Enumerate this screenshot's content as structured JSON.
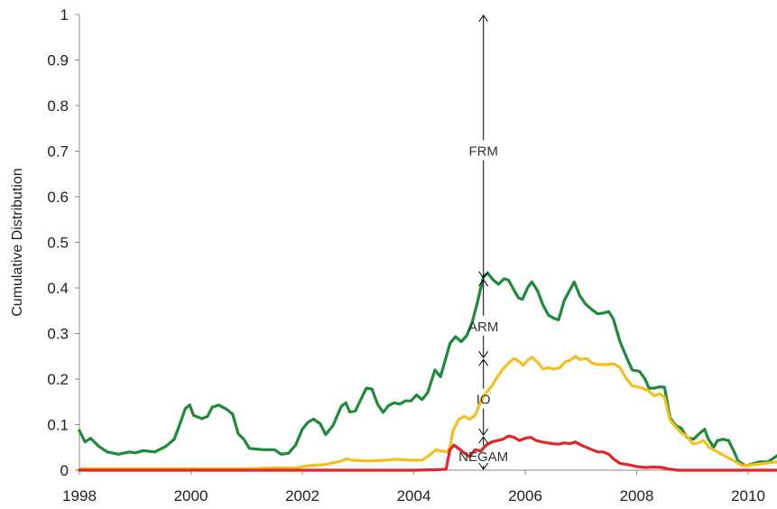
{
  "chart_data": {
    "type": "line",
    "ylabel": "Cumulative Distribution",
    "xlim": [
      1998,
      2010
    ],
    "ylim": [
      0,
      1
    ],
    "xticks": [
      1998,
      2000,
      2002,
      2004,
      2006,
      2008,
      2010
    ],
    "yticks": [
      0,
      0.1,
      0.2,
      0.3,
      0.4,
      0.5,
      0.6,
      0.7,
      0.8,
      0.9,
      1
    ],
    "ytick_labels": [
      "0",
      "0.1",
      "0.2",
      "0.3",
      "0.4",
      "0.5",
      "0.6",
      "0.7",
      "0.8",
      "0.9",
      "1"
    ],
    "grid": false,
    "series": [
      {
        "color": "#1e8a3c",
        "points": [
          [
            1998.0,
            0.087
          ],
          [
            1998.1,
            0.062
          ],
          [
            1998.2,
            0.07
          ],
          [
            1998.35,
            0.052
          ],
          [
            1998.5,
            0.04
          ],
          [
            1998.7,
            0.035
          ],
          [
            1998.9,
            0.04
          ],
          [
            1999.0,
            0.038
          ],
          [
            1999.15,
            0.043
          ],
          [
            1999.35,
            0.04
          ],
          [
            1999.55,
            0.052
          ],
          [
            1999.7,
            0.068
          ],
          [
            1999.8,
            0.1
          ],
          [
            1999.9,
            0.135
          ],
          [
            1999.98,
            0.143
          ],
          [
            2000.05,
            0.12
          ],
          [
            2000.2,
            0.113
          ],
          [
            2000.3,
            0.118
          ],
          [
            2000.38,
            0.138
          ],
          [
            2000.5,
            0.143
          ],
          [
            2000.65,
            0.133
          ],
          [
            2000.75,
            0.123
          ],
          [
            2000.85,
            0.08
          ],
          [
            2000.95,
            0.068
          ],
          [
            2001.05,
            0.048
          ],
          [
            2001.3,
            0.045
          ],
          [
            2001.5,
            0.045
          ],
          [
            2001.62,
            0.035
          ],
          [
            2001.75,
            0.037
          ],
          [
            2001.88,
            0.055
          ],
          [
            2002.0,
            0.09
          ],
          [
            2002.1,
            0.105
          ],
          [
            2002.2,
            0.112
          ],
          [
            2002.32,
            0.102
          ],
          [
            2002.42,
            0.078
          ],
          [
            2002.55,
            0.098
          ],
          [
            2002.7,
            0.14
          ],
          [
            2002.78,
            0.148
          ],
          [
            2002.85,
            0.128
          ],
          [
            2002.95,
            0.13
          ],
          [
            2003.05,
            0.155
          ],
          [
            2003.15,
            0.18
          ],
          [
            2003.25,
            0.178
          ],
          [
            2003.35,
            0.145
          ],
          [
            2003.45,
            0.127
          ],
          [
            2003.55,
            0.142
          ],
          [
            2003.65,
            0.148
          ],
          [
            2003.75,
            0.145
          ],
          [
            2003.85,
            0.152
          ],
          [
            2003.95,
            0.152
          ],
          [
            2004.05,
            0.165
          ],
          [
            2004.15,
            0.155
          ],
          [
            2004.25,
            0.17
          ],
          [
            2004.38,
            0.22
          ],
          [
            2004.48,
            0.205
          ],
          [
            2004.55,
            0.235
          ],
          [
            2004.65,
            0.278
          ],
          [
            2004.75,
            0.293
          ],
          [
            2004.85,
            0.282
          ],
          [
            2004.95,
            0.295
          ],
          [
            2005.05,
            0.325
          ],
          [
            2005.15,
            0.372
          ],
          [
            2005.25,
            0.425
          ],
          [
            2005.33,
            0.432
          ],
          [
            2005.42,
            0.418
          ],
          [
            2005.52,
            0.408
          ],
          [
            2005.62,
            0.42
          ],
          [
            2005.7,
            0.417
          ],
          [
            2005.8,
            0.395
          ],
          [
            2005.88,
            0.378
          ],
          [
            2005.95,
            0.375
          ],
          [
            2006.05,
            0.402
          ],
          [
            2006.12,
            0.413
          ],
          [
            2006.22,
            0.394
          ],
          [
            2006.32,
            0.362
          ],
          [
            2006.42,
            0.34
          ],
          [
            2006.52,
            0.333
          ],
          [
            2006.6,
            0.33
          ],
          [
            2006.7,
            0.372
          ],
          [
            2006.8,
            0.395
          ],
          [
            2006.88,
            0.413
          ],
          [
            2006.98,
            0.383
          ],
          [
            2007.08,
            0.365
          ],
          [
            2007.2,
            0.352
          ],
          [
            2007.3,
            0.343
          ],
          [
            2007.4,
            0.345
          ],
          [
            2007.5,
            0.348
          ],
          [
            2007.58,
            0.332
          ],
          [
            2007.7,
            0.282
          ],
          [
            2007.82,
            0.247
          ],
          [
            2007.92,
            0.22
          ],
          [
            2008.05,
            0.217
          ],
          [
            2008.15,
            0.2
          ],
          [
            2008.22,
            0.18
          ],
          [
            2008.32,
            0.18
          ],
          [
            2008.42,
            0.183
          ],
          [
            2008.5,
            0.182
          ],
          [
            2008.6,
            0.115
          ],
          [
            2008.7,
            0.098
          ],
          [
            2008.8,
            0.092
          ],
          [
            2008.9,
            0.072
          ],
          [
            2009.02,
            0.068
          ],
          [
            2009.12,
            0.08
          ],
          [
            2009.22,
            0.09
          ],
          [
            2009.28,
            0.07
          ],
          [
            2009.38,
            0.05
          ],
          [
            2009.45,
            0.065
          ],
          [
            2009.55,
            0.068
          ],
          [
            2009.65,
            0.065
          ],
          [
            2009.75,
            0.04
          ],
          [
            2009.82,
            0.02
          ],
          [
            2009.95,
            0.01
          ],
          [
            2010.05,
            0.013
          ],
          [
            2010.2,
            0.018
          ],
          [
            2010.35,
            0.018
          ],
          [
            2010.5,
            0.03
          ],
          [
            2010.6,
            0.04
          ],
          [
            2010.7,
            0.047
          ],
          [
            2010.8,
            0.044
          ],
          [
            2010.85,
            0.04
          ],
          [
            2010.92,
            0.047
          ]
        ]
      },
      {
        "color": "#f5bf1d",
        "points": [
          [
            1998.0,
            0.003
          ],
          [
            1999.0,
            0.003
          ],
          [
            2000.0,
            0.003
          ],
          [
            2001.0,
            0.003
          ],
          [
            2001.5,
            0.005
          ],
          [
            2001.9,
            0.005
          ],
          [
            2002.1,
            0.01
          ],
          [
            2002.4,
            0.012
          ],
          [
            2002.7,
            0.02
          ],
          [
            2002.8,
            0.025
          ],
          [
            2002.9,
            0.022
          ],
          [
            2003.2,
            0.02
          ],
          [
            2003.5,
            0.022
          ],
          [
            2003.7,
            0.024
          ],
          [
            2003.9,
            0.022
          ],
          [
            2004.15,
            0.022
          ],
          [
            2004.25,
            0.03
          ],
          [
            2004.4,
            0.045
          ],
          [
            2004.5,
            0.042
          ],
          [
            2004.6,
            0.04
          ],
          [
            2004.65,
            0.05
          ],
          [
            2004.7,
            0.085
          ],
          [
            2004.8,
            0.11
          ],
          [
            2004.9,
            0.118
          ],
          [
            2005.0,
            0.112
          ],
          [
            2005.1,
            0.12
          ],
          [
            2005.2,
            0.15
          ],
          [
            2005.3,
            0.17
          ],
          [
            2005.4,
            0.185
          ],
          [
            2005.5,
            0.205
          ],
          [
            2005.6,
            0.222
          ],
          [
            2005.7,
            0.235
          ],
          [
            2005.8,
            0.245
          ],
          [
            2005.9,
            0.238
          ],
          [
            2005.96,
            0.23
          ],
          [
            2006.05,
            0.242
          ],
          [
            2006.12,
            0.248
          ],
          [
            2006.22,
            0.237
          ],
          [
            2006.32,
            0.222
          ],
          [
            2006.42,
            0.225
          ],
          [
            2006.52,
            0.222
          ],
          [
            2006.62,
            0.225
          ],
          [
            2006.72,
            0.238
          ],
          [
            2006.82,
            0.242
          ],
          [
            2006.9,
            0.25
          ],
          [
            2006.98,
            0.243
          ],
          [
            2007.1,
            0.245
          ],
          [
            2007.2,
            0.235
          ],
          [
            2007.3,
            0.232
          ],
          [
            2007.45,
            0.232
          ],
          [
            2007.6,
            0.233
          ],
          [
            2007.7,
            0.225
          ],
          [
            2007.82,
            0.2
          ],
          [
            2007.92,
            0.185
          ],
          [
            2008.05,
            0.182
          ],
          [
            2008.2,
            0.175
          ],
          [
            2008.32,
            0.163
          ],
          [
            2008.42,
            0.168
          ],
          [
            2008.5,
            0.16
          ],
          [
            2008.6,
            0.11
          ],
          [
            2008.7,
            0.095
          ],
          [
            2008.8,
            0.082
          ],
          [
            2008.9,
            0.075
          ],
          [
            2009.0,
            0.058
          ],
          [
            2009.1,
            0.06
          ],
          [
            2009.2,
            0.065
          ],
          [
            2009.3,
            0.05
          ],
          [
            2009.45,
            0.04
          ],
          [
            2009.6,
            0.03
          ],
          [
            2009.75,
            0.02
          ],
          [
            2009.9,
            0.01
          ],
          [
            2010.1,
            0.012
          ],
          [
            2010.3,
            0.015
          ],
          [
            2010.5,
            0.018
          ],
          [
            2010.7,
            0.018
          ],
          [
            2010.92,
            0.018
          ]
        ]
      },
      {
        "color": "#e0252b",
        "points": [
          [
            1998.0,
            0.0
          ],
          [
            2000.0,
            0.0
          ],
          [
            2001.0,
            0.0
          ],
          [
            2002.0,
            0.0
          ],
          [
            2003.0,
            0.0
          ],
          [
            2004.0,
            0.0
          ],
          [
            2004.4,
            0.001
          ],
          [
            2004.58,
            0.002
          ],
          [
            2004.65,
            0.045
          ],
          [
            2004.72,
            0.055
          ],
          [
            2004.8,
            0.048
          ],
          [
            2004.9,
            0.038
          ],
          [
            2005.0,
            0.03
          ],
          [
            2005.1,
            0.045
          ],
          [
            2005.2,
            0.042
          ],
          [
            2005.3,
            0.055
          ],
          [
            2005.4,
            0.062
          ],
          [
            2005.5,
            0.065
          ],
          [
            2005.6,
            0.068
          ],
          [
            2005.7,
            0.075
          ],
          [
            2005.8,
            0.072
          ],
          [
            2005.9,
            0.065
          ],
          [
            2006.0,
            0.07
          ],
          [
            2006.1,
            0.072
          ],
          [
            2006.2,
            0.065
          ],
          [
            2006.3,
            0.062
          ],
          [
            2006.4,
            0.06
          ],
          [
            2006.5,
            0.058
          ],
          [
            2006.6,
            0.057
          ],
          [
            2006.7,
            0.06
          ],
          [
            2006.8,
            0.058
          ],
          [
            2006.9,
            0.062
          ],
          [
            2007.0,
            0.055
          ],
          [
            2007.1,
            0.05
          ],
          [
            2007.2,
            0.045
          ],
          [
            2007.3,
            0.04
          ],
          [
            2007.4,
            0.04
          ],
          [
            2007.5,
            0.035
          ],
          [
            2007.58,
            0.025
          ],
          [
            2007.7,
            0.015
          ],
          [
            2007.85,
            0.012
          ],
          [
            2008.0,
            0.008
          ],
          [
            2008.15,
            0.006
          ],
          [
            2008.3,
            0.007
          ],
          [
            2008.45,
            0.006
          ],
          [
            2008.6,
            0.002
          ],
          [
            2008.75,
            0.0
          ],
          [
            2009.0,
            0.0
          ],
          [
            2009.5,
            0.0
          ],
          [
            2010.0,
            0.0
          ],
          [
            2010.92,
            0.0
          ]
        ]
      }
    ],
    "annotation_x": 2005.25,
    "annotations": [
      {
        "label": "FRM",
        "y": 0.7,
        "from": 1.0,
        "to": 0.42
      },
      {
        "label": "ARM",
        "y": 0.315,
        "from": 0.42,
        "to": 0.245
      },
      {
        "label": "IO",
        "y": 0.155,
        "from": 0.245,
        "to": 0.075
      },
      {
        "label": "NEGAM",
        "y": 0.03,
        "from": 0.075,
        "to": 0.0
      }
    ]
  }
}
